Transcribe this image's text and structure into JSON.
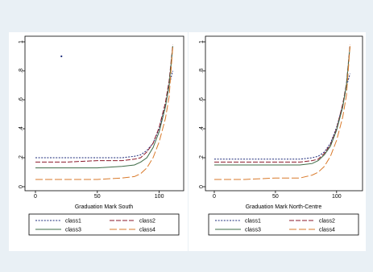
{
  "chart_data": [
    {
      "type": "line",
      "xlabel": "Graduation Mark South",
      "ylabel": "",
      "xlim": [
        0,
        110
      ],
      "ylim": [
        0,
        1
      ],
      "xticks": [
        "0",
        "50",
        "100"
      ],
      "yticks": [
        "0",
        ".2",
        ".4",
        ".6",
        ".8",
        "1"
      ],
      "legend": [
        "class1",
        "class2",
        "class3",
        "class4"
      ],
      "legend_position": "bottom",
      "stray_point": {
        "x": 21,
        "y": 0.9
      },
      "series": [
        {
          "name": "class1",
          "color": "#1b2a7a",
          "dash": "2,1.6",
          "x": [
            0,
            25,
            50,
            70,
            80,
            85,
            90,
            95,
            100,
            105,
            108,
            111
          ],
          "y": [
            0.2,
            0.2,
            0.2,
            0.2,
            0.21,
            0.22,
            0.25,
            0.3,
            0.4,
            0.56,
            0.7,
            0.8
          ]
        },
        {
          "name": "class2",
          "color": "#8b1a2b",
          "dash": "6,2",
          "x": [
            0,
            25,
            50,
            70,
            80,
            85,
            90,
            95,
            100,
            105,
            108,
            111
          ],
          "y": [
            0.17,
            0.17,
            0.18,
            0.18,
            0.19,
            0.2,
            0.24,
            0.3,
            0.41,
            0.58,
            0.73,
            0.98
          ]
        },
        {
          "name": "class3",
          "color": "#3e6b47",
          "dash": "",
          "x": [
            0,
            25,
            50,
            70,
            80,
            85,
            90,
            95,
            100,
            105,
            108,
            111
          ],
          "y": [
            0.13,
            0.13,
            0.13,
            0.14,
            0.15,
            0.17,
            0.2,
            0.27,
            0.38,
            0.55,
            0.7,
            0.97
          ]
        },
        {
          "name": "class4",
          "color": "#d97a2b",
          "dash": "9,3",
          "x": [
            0,
            25,
            50,
            70,
            80,
            85,
            90,
            95,
            100,
            105,
            108,
            111
          ],
          "y": [
            0.05,
            0.05,
            0.05,
            0.06,
            0.07,
            0.09,
            0.13,
            0.2,
            0.31,
            0.47,
            0.62,
            0.97
          ]
        }
      ]
    },
    {
      "type": "line",
      "xlabel": "Graduation Mark North-Centre",
      "ylabel": "",
      "xlim": [
        0,
        110
      ],
      "ylim": [
        0,
        1
      ],
      "xticks": [
        "0",
        "50",
        "100"
      ],
      "yticks": [
        "0",
        ".2",
        ".4",
        ".6",
        ".8",
        "1"
      ],
      "legend": [
        "class1",
        "class2",
        "class3",
        "class4"
      ],
      "legend_position": "bottom",
      "series": [
        {
          "name": "class1",
          "color": "#1b2a7a",
          "dash": "2,1.6",
          "x": [
            0,
            25,
            50,
            70,
            80,
            85,
            90,
            95,
            100,
            105,
            108,
            111
          ],
          "y": [
            0.19,
            0.19,
            0.19,
            0.19,
            0.2,
            0.21,
            0.24,
            0.3,
            0.41,
            0.56,
            0.69,
            0.78
          ]
        },
        {
          "name": "class2",
          "color": "#8b1a2b",
          "dash": "6,2",
          "x": [
            0,
            25,
            50,
            70,
            80,
            85,
            90,
            95,
            100,
            105,
            108,
            111
          ],
          "y": [
            0.17,
            0.17,
            0.17,
            0.17,
            0.18,
            0.19,
            0.23,
            0.29,
            0.4,
            0.57,
            0.71,
            0.98
          ]
        },
        {
          "name": "class3",
          "color": "#3e6b47",
          "dash": "",
          "x": [
            0,
            25,
            50,
            70,
            80,
            85,
            90,
            95,
            100,
            105,
            108,
            111
          ],
          "y": [
            0.15,
            0.15,
            0.15,
            0.15,
            0.16,
            0.18,
            0.22,
            0.28,
            0.39,
            0.55,
            0.7,
            0.97
          ]
        },
        {
          "name": "class4",
          "color": "#d97a2b",
          "dash": "9,3",
          "x": [
            0,
            25,
            50,
            70,
            80,
            85,
            90,
            95,
            100,
            105,
            108,
            111
          ],
          "y": [
            0.05,
            0.05,
            0.06,
            0.06,
            0.08,
            0.1,
            0.14,
            0.21,
            0.32,
            0.48,
            0.63,
            0.97
          ]
        }
      ]
    }
  ]
}
